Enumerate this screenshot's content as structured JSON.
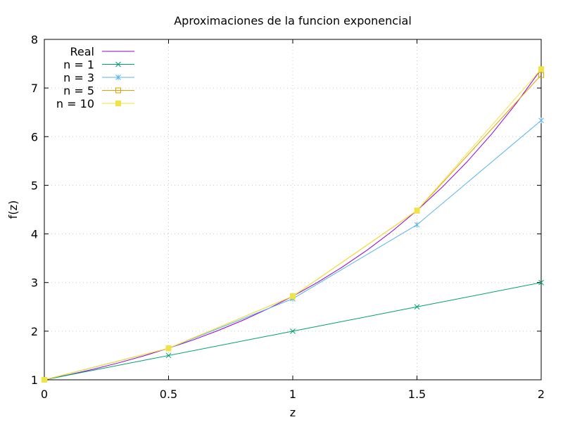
{
  "chart_data": {
    "type": "line",
    "title": "Aproximaciones de la funcion exponencial",
    "xlabel": "z",
    "ylabel": "f(z)",
    "xlim": [
      0,
      2
    ],
    "ylim": [
      1,
      8
    ],
    "x_ticks": [
      0,
      0.5,
      1,
      1.5,
      2
    ],
    "x_tick_labels": [
      "0",
      "0.5",
      "1",
      "1.5",
      "2"
    ],
    "y_ticks": [
      1,
      2,
      3,
      4,
      5,
      6,
      7,
      8
    ],
    "y_tick_labels": [
      "1",
      "2",
      "3",
      "4",
      "5",
      "6",
      "7",
      "8"
    ],
    "grid": true,
    "legend_position": "top-left",
    "series": [
      {
        "name": "Real",
        "color": "#9400d3",
        "marker": "none",
        "x": [
          0,
          0.1,
          0.2,
          0.3,
          0.4,
          0.5,
          0.6,
          0.7,
          0.8,
          0.9,
          1.0,
          1.1,
          1.2,
          1.3,
          1.4,
          1.5,
          1.6,
          1.7,
          1.8,
          1.9,
          2.0
        ],
        "y": [
          1.0,
          1.105,
          1.221,
          1.35,
          1.492,
          1.649,
          1.822,
          2.014,
          2.226,
          2.46,
          2.718,
          3.004,
          3.32,
          3.669,
          4.055,
          4.482,
          4.953,
          5.474,
          6.05,
          6.686,
          7.389
        ]
      },
      {
        "name": "n = 1",
        "color": "#009e73",
        "marker": "x",
        "x": [
          0,
          0.5,
          1,
          1.5,
          2
        ],
        "y": [
          1.0,
          1.5,
          2.0,
          2.5,
          3.0
        ]
      },
      {
        "name": "n = 3",
        "color": "#56b4e9",
        "marker": "asterisk",
        "x": [
          0,
          0.5,
          1,
          1.5,
          2
        ],
        "y": [
          1.0,
          1.646,
          2.667,
          4.188,
          6.333
        ]
      },
      {
        "name": "n = 5",
        "color": "#e69f00",
        "marker": "open-square",
        "x": [
          0,
          0.5,
          1,
          1.5,
          2
        ],
        "y": [
          1.0,
          1.649,
          2.717,
          4.479,
          7.267
        ]
      },
      {
        "name": "n = 10",
        "color": "#f0e442",
        "marker": "filled-square",
        "x": [
          0,
          0.5,
          1,
          1.5,
          2
        ],
        "y": [
          1.0,
          1.649,
          2.718,
          4.482,
          7.389
        ]
      }
    ]
  }
}
